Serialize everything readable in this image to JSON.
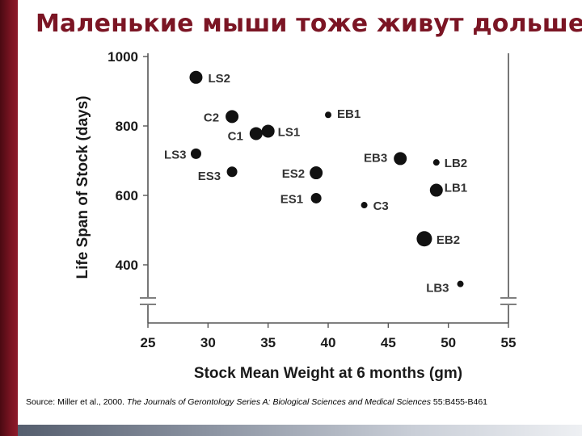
{
  "slide": {
    "title": "Маленькие мыши тоже живут дольше"
  },
  "source": {
    "prefix": "Source: Miller et al., 2000. ",
    "journal": "The Journals of Gerontology Series A: Biological Sciences and Medical Sciences",
    "suffix": " 55:B455-B461"
  },
  "chart_data": {
    "type": "scatter",
    "xlabel": "Stock Mean Weight at 6 months (gm)",
    "ylabel": "Life Span of Stock (days)",
    "xlim": [
      25,
      55
    ],
    "ylim": [
      400,
      1000
    ],
    "x_ticks": [
      25,
      30,
      35,
      40,
      45,
      50,
      55
    ],
    "y_ticks": [
      400,
      600,
      800,
      1000
    ],
    "grid": false,
    "points": [
      {
        "label": "LS2",
        "x": 29,
        "y": 940,
        "size": "large"
      },
      {
        "label": "C2",
        "x": 32,
        "y": 827,
        "size": "large"
      },
      {
        "label": "C1",
        "x": 34,
        "y": 778,
        "size": "large"
      },
      {
        "label": "LS1",
        "x": 35,
        "y": 785,
        "size": "large"
      },
      {
        "label": "EB1",
        "x": 40,
        "y": 832,
        "size": "small"
      },
      {
        "label": "LS3",
        "x": 29,
        "y": 720,
        "size": "medium"
      },
      {
        "label": "ES3",
        "x": 32,
        "y": 668,
        "size": "medium"
      },
      {
        "label": "ES2",
        "x": 39,
        "y": 665,
        "size": "large"
      },
      {
        "label": "EB3",
        "x": 46,
        "y": 706,
        "size": "large"
      },
      {
        "label": "LB2",
        "x": 49,
        "y": 695,
        "size": "small"
      },
      {
        "label": "ES1",
        "x": 39,
        "y": 592,
        "size": "medium"
      },
      {
        "label": "C3",
        "x": 43,
        "y": 572,
        "size": "small"
      },
      {
        "label": "LB1",
        "x": 49,
        "y": 615,
        "size": "large"
      },
      {
        "label": "EB2",
        "x": 48,
        "y": 475,
        "size": "xlarge"
      },
      {
        "label": "LB3",
        "x": 51,
        "y": 345,
        "size": "small"
      }
    ]
  }
}
